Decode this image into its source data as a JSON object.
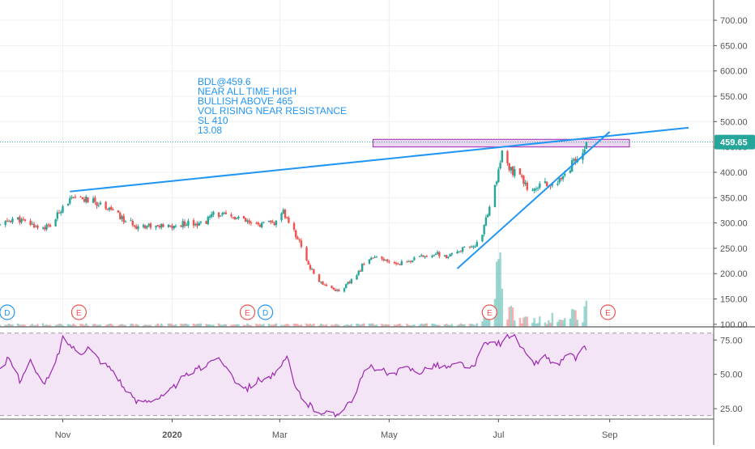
{
  "colors": {
    "up": "#26a69a",
    "down": "#ef5350",
    "trendline": "#2196f3",
    "rsi_line": "#9c27b0",
    "rsi_band": "#f3e5f5",
    "zone_fill": "#e1bee7",
    "zone_border": "#9c27b0",
    "price_label_bg": "#26a69a",
    "event_badge": "#ef5350",
    "dividend_badge": "#2196f3",
    "axis_text": "#555555"
  },
  "annotation": {
    "lines": [
      "BDL@459.6",
      "NEAR ALL TIME HIGH",
      "BULLISH ABOVE 465",
      "VOL RISING NEAR RESISTANCE",
      "SL 410",
      "13.08"
    ]
  },
  "price_axis": {
    "current_price_label": "459.65",
    "current_price": 459.65
  },
  "events": [
    {
      "label": "D",
      "kind": "dividend",
      "date": "2019-10-01"
    },
    {
      "label": "E",
      "kind": "earnings",
      "date": "2019-11-10"
    },
    {
      "label": "E",
      "kind": "earnings",
      "date": "2020-02-12"
    },
    {
      "label": "D",
      "kind": "dividend",
      "date": "2020-02-22"
    },
    {
      "label": "E",
      "kind": "earnings",
      "date": "2020-06-26"
    },
    {
      "label": "E",
      "kind": "earnings",
      "date": "2020-08-31"
    }
  ],
  "chart_data": [
    {
      "type": "candlestick",
      "title": "",
      "xlabel": "",
      "ylabel": "",
      "x_range": [
        "2019-09-27",
        "2020-10-29"
      ],
      "ylim": [
        95,
        740
      ],
      "y_ticks": [
        "700.00",
        "650.00",
        "600.00",
        "550.00",
        "500.00",
        "450.00",
        "400.00",
        "350.00",
        "300.00",
        "250.00",
        "200.00",
        "150.00",
        "100.00"
      ],
      "x_ticks": [
        "Nov",
        "2020",
        "Mar",
        "May",
        "Jul",
        "Sep"
      ],
      "x_tick_dates": [
        "2019-11-01",
        "2020-01-01",
        "2020-03-01",
        "2020-05-01",
        "2020-07-01",
        "2020-09-01"
      ],
      "grid": true,
      "price_path": [
        [
          "2019-09-27",
          295
        ],
        [
          "2019-10-05",
          310
        ],
        [
          "2019-10-12",
          300
        ],
        [
          "2019-10-20",
          290
        ],
        [
          "2019-10-26",
          295
        ],
        [
          "2019-11-01",
          335
        ],
        [
          "2019-11-05",
          345
        ],
        [
          "2019-11-11",
          348
        ],
        [
          "2019-11-15",
          345
        ],
        [
          "2019-11-20",
          340
        ],
        [
          "2019-11-27",
          330
        ],
        [
          "2019-12-05",
          305
        ],
        [
          "2019-12-12",
          295
        ],
        [
          "2019-12-20",
          295
        ],
        [
          "2019-12-27",
          292
        ],
        [
          "2020-01-02",
          292
        ],
        [
          "2020-01-10",
          302
        ],
        [
          "2020-01-18",
          298
        ],
        [
          "2020-01-25",
          320
        ],
        [
          "2020-02-01",
          312
        ],
        [
          "2020-02-08",
          308
        ],
        [
          "2020-02-15",
          295
        ],
        [
          "2020-02-22",
          298
        ],
        [
          "2020-02-28",
          300
        ],
        [
          "2020-03-03",
          320
        ],
        [
          "2020-03-08",
          290
        ],
        [
          "2020-03-13",
          255
        ],
        [
          "2020-03-18",
          210
        ],
        [
          "2020-03-23",
          185
        ],
        [
          "2020-03-28",
          175
        ],
        [
          "2020-04-03",
          165
        ],
        [
          "2020-04-08",
          180
        ],
        [
          "2020-04-13",
          195
        ],
        [
          "2020-04-18",
          230
        ],
        [
          "2020-04-25",
          230
        ],
        [
          "2020-05-02",
          220
        ],
        [
          "2020-05-10",
          222
        ],
        [
          "2020-05-18",
          232
        ],
        [
          "2020-05-26",
          240
        ],
        [
          "2020-06-03",
          232
        ],
        [
          "2020-06-10",
          248
        ],
        [
          "2020-06-17",
          250
        ],
        [
          "2020-06-22",
          280
        ],
        [
          "2020-06-26",
          330
        ],
        [
          "2020-06-30",
          380
        ],
        [
          "2020-07-03",
          440
        ],
        [
          "2020-07-07",
          405
        ],
        [
          "2020-07-12",
          395
        ],
        [
          "2020-07-17",
          370
        ],
        [
          "2020-07-22",
          372
        ],
        [
          "2020-07-27",
          380
        ],
        [
          "2020-08-03",
          378
        ],
        [
          "2020-08-08",
          395
        ],
        [
          "2020-08-13",
          430
        ],
        [
          "2020-08-16",
          435
        ],
        [
          "2020-08-19",
          459.65
        ]
      ],
      "volume_peaks": [
        [
          "2020-06-24",
          16
        ],
        [
          "2020-06-28",
          36
        ],
        [
          "2020-07-01",
          94
        ],
        [
          "2020-07-03",
          46
        ],
        [
          "2020-07-08",
          28
        ],
        [
          "2020-07-16",
          12
        ],
        [
          "2020-07-25",
          14
        ],
        [
          "2020-08-01",
          20
        ],
        [
          "2020-08-12",
          22
        ],
        [
          "2020-08-19",
          30
        ]
      ],
      "resistance_zone": {
        "from": "2020-04-22",
        "to": "2020-09-12",
        "y_low": 450,
        "y_high": 465
      },
      "trendlines": [
        {
          "name": "resistance",
          "points": [
            [
              "2019-11-05",
              362
            ],
            [
              "2020-10-15",
              488
            ]
          ]
        },
        {
          "name": "support",
          "points": [
            [
              "2020-06-08",
              210
            ],
            [
              "2020-09-01",
              480
            ]
          ]
        }
      ],
      "reference_line": 459.65
    },
    {
      "type": "line",
      "title": "",
      "ylim": [
        18,
        84
      ],
      "y_ticks": [
        "75.00",
        "50.00",
        "25.00"
      ],
      "band": [
        20,
        80
      ],
      "rsi_path": [
        [
          "2019-09-27",
          52
        ],
        [
          "2019-10-02",
          62
        ],
        [
          "2019-10-08",
          46
        ],
        [
          "2019-10-14",
          60
        ],
        [
          "2019-10-20",
          42
        ],
        [
          "2019-10-26",
          50
        ],
        [
          "2019-11-01",
          76
        ],
        [
          "2019-11-05",
          72
        ],
        [
          "2019-11-10",
          65
        ],
        [
          "2019-11-15",
          70
        ],
        [
          "2019-11-22",
          60
        ],
        [
          "2019-11-30",
          52
        ],
        [
          "2019-12-06",
          38
        ],
        [
          "2019-12-12",
          30
        ],
        [
          "2019-12-20",
          32
        ],
        [
          "2019-12-28",
          34
        ],
        [
          "2020-01-05",
          45
        ],
        [
          "2020-01-12",
          52
        ],
        [
          "2020-01-18",
          55
        ],
        [
          "2020-01-24",
          62
        ],
        [
          "2020-01-30",
          58
        ],
        [
          "2020-02-05",
          46
        ],
        [
          "2020-02-12",
          40
        ],
        [
          "2020-02-18",
          46
        ],
        [
          "2020-02-24",
          48
        ],
        [
          "2020-03-01",
          52
        ],
        [
          "2020-03-05",
          63
        ],
        [
          "2020-03-09",
          42
        ],
        [
          "2020-03-15",
          30
        ],
        [
          "2020-03-21",
          24
        ],
        [
          "2020-03-27",
          22
        ],
        [
          "2020-04-01",
          20
        ],
        [
          "2020-04-06",
          27
        ],
        [
          "2020-04-12",
          34
        ],
        [
          "2020-04-18",
          55
        ],
        [
          "2020-04-25",
          55
        ],
        [
          "2020-05-02",
          48
        ],
        [
          "2020-05-10",
          55
        ],
        [
          "2020-05-18",
          52
        ],
        [
          "2020-05-26",
          57
        ],
        [
          "2020-06-03",
          55
        ],
        [
          "2020-06-10",
          58
        ],
        [
          "2020-06-17",
          54
        ],
        [
          "2020-06-22",
          70
        ],
        [
          "2020-06-28",
          74
        ],
        [
          "2020-07-03",
          72
        ],
        [
          "2020-07-08",
          80
        ],
        [
          "2020-07-12",
          74
        ],
        [
          "2020-07-17",
          62
        ],
        [
          "2020-07-22",
          58
        ],
        [
          "2020-07-27",
          63
        ],
        [
          "2020-08-03",
          56
        ],
        [
          "2020-08-08",
          64
        ],
        [
          "2020-08-13",
          62
        ],
        [
          "2020-08-19",
          70
        ]
      ]
    }
  ]
}
